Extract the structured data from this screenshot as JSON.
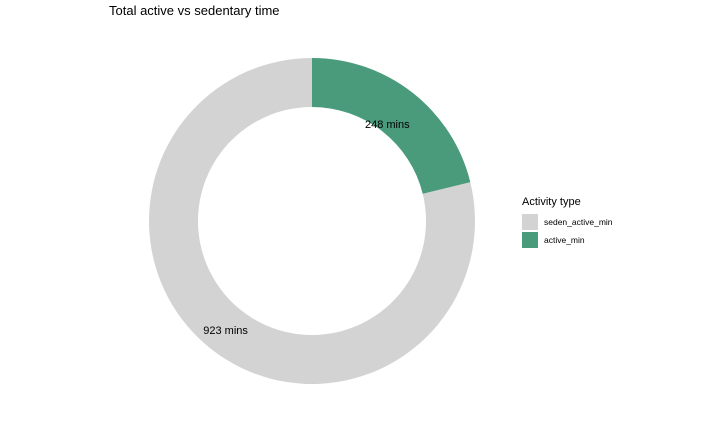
{
  "chart_data": {
    "type": "pie",
    "style": "donut",
    "title": "Total active vs sedentary time",
    "legend_title": "Activity type",
    "legend_position": "right",
    "slices": [
      {
        "name": "seden_active_min",
        "value": 923,
        "label": "923 mins",
        "color": "#d3d3d3"
      },
      {
        "name": "active_min",
        "value": 248,
        "label": "248 mins",
        "color": "#4a9b7b"
      }
    ]
  }
}
